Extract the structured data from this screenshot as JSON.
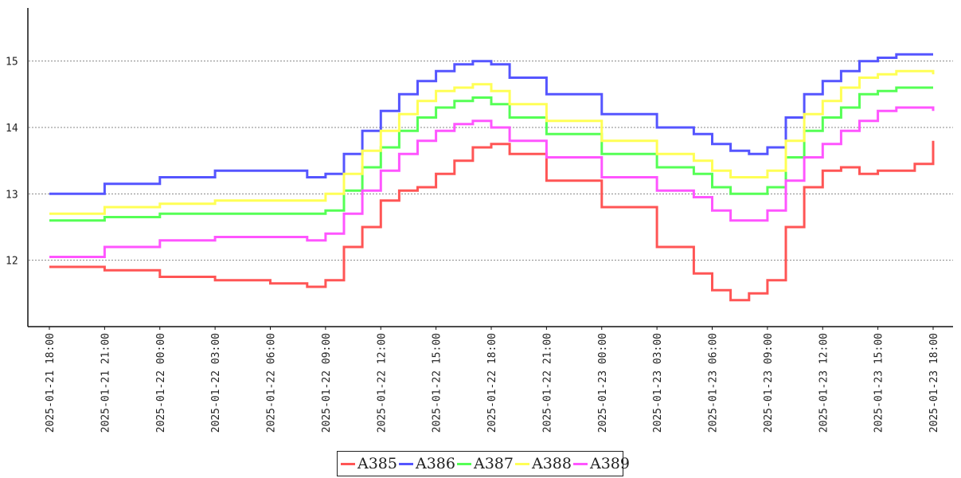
{
  "chart_data": {
    "type": "line",
    "title": "",
    "xlabel": "",
    "ylabel": "",
    "x_type": "datetime",
    "xlim": [
      "2025-01-21 18:00",
      "2025-01-23 18:00"
    ],
    "ylim": [
      11.0,
      15.8
    ],
    "grid": "horizontal dotted at y ticks",
    "legend_position": "bottom-center",
    "x_ticks": [
      "2025-01-21 18:00",
      "2025-01-21 21:00",
      "2025-01-22 00:00",
      "2025-01-22 03:00",
      "2025-01-22 06:00",
      "2025-01-22 09:00",
      "2025-01-22 12:00",
      "2025-01-22 15:00",
      "2025-01-22 18:00",
      "2025-01-22 21:00",
      "2025-01-23 00:00",
      "2025-01-23 03:00",
      "2025-01-23 06:00",
      "2025-01-23 09:00",
      "2025-01-23 12:00",
      "2025-01-23 15:00",
      "2025-01-23 18:00"
    ],
    "y_ticks": [
      12,
      13,
      14,
      15
    ],
    "x": [
      "2025-01-21 18:00",
      "2025-01-21 21:00",
      "2025-01-22 00:00",
      "2025-01-22 03:00",
      "2025-01-22 06:00",
      "2025-01-22 08:00",
      "2025-01-22 09:00",
      "2025-01-22 10:00",
      "2025-01-22 11:00",
      "2025-01-22 12:00",
      "2025-01-22 13:00",
      "2025-01-22 14:00",
      "2025-01-22 15:00",
      "2025-01-22 16:00",
      "2025-01-22 17:00",
      "2025-01-22 18:00",
      "2025-01-22 19:00",
      "2025-01-22 21:00",
      "2025-01-23 00:00",
      "2025-01-23 03:00",
      "2025-01-23 05:00",
      "2025-01-23 06:00",
      "2025-01-23 07:00",
      "2025-01-23 08:00",
      "2025-01-23 09:00",
      "2025-01-23 10:00",
      "2025-01-23 11:00",
      "2025-01-23 12:00",
      "2025-01-23 13:00",
      "2025-01-23 14:00",
      "2025-01-23 15:00",
      "2025-01-23 16:00",
      "2025-01-23 17:00",
      "2025-01-23 18:00"
    ],
    "series": [
      {
        "name": "A385",
        "color": "#ff5555",
        "values": [
          11.9,
          11.85,
          11.75,
          11.7,
          11.65,
          11.6,
          11.7,
          12.2,
          12.5,
          12.9,
          13.05,
          13.1,
          13.3,
          13.5,
          13.7,
          13.75,
          13.6,
          13.2,
          12.8,
          12.2,
          11.8,
          11.55,
          11.4,
          11.5,
          11.7,
          12.5,
          13.1,
          13.35,
          13.4,
          13.3,
          13.35,
          13.35,
          13.45,
          13.8
        ]
      },
      {
        "name": "A386",
        "color": "#5555ff",
        "values": [
          13.0,
          13.15,
          13.25,
          13.35,
          13.35,
          13.25,
          13.3,
          13.6,
          13.95,
          14.25,
          14.5,
          14.7,
          14.85,
          14.95,
          15.0,
          14.95,
          14.75,
          14.5,
          14.2,
          14.0,
          13.9,
          13.75,
          13.65,
          13.6,
          13.7,
          14.15,
          14.5,
          14.7,
          14.85,
          15.0,
          15.05,
          15.1,
          15.1,
          15.1
        ]
      },
      {
        "name": "A387",
        "color": "#55ff55",
        "values": [
          12.6,
          12.65,
          12.7,
          12.7,
          12.7,
          12.7,
          12.75,
          13.05,
          13.4,
          13.7,
          13.95,
          14.15,
          14.3,
          14.4,
          14.45,
          14.35,
          14.15,
          13.9,
          13.6,
          13.4,
          13.3,
          13.1,
          13.0,
          13.0,
          13.1,
          13.55,
          13.95,
          14.15,
          14.3,
          14.5,
          14.55,
          14.6,
          14.6,
          14.6
        ]
      },
      {
        "name": "A388",
        "color": "#ffff55",
        "values": [
          12.7,
          12.8,
          12.85,
          12.9,
          12.9,
          12.9,
          13.0,
          13.3,
          13.65,
          13.95,
          14.2,
          14.4,
          14.55,
          14.6,
          14.65,
          14.55,
          14.35,
          14.1,
          13.8,
          13.6,
          13.5,
          13.35,
          13.25,
          13.25,
          13.35,
          13.8,
          14.2,
          14.4,
          14.6,
          14.75,
          14.8,
          14.85,
          14.85,
          14.8
        ]
      },
      {
        "name": "A389",
        "color": "#ff55ff",
        "values": [
          12.05,
          12.2,
          12.3,
          12.35,
          12.35,
          12.3,
          12.4,
          12.7,
          13.05,
          13.35,
          13.6,
          13.8,
          13.95,
          14.05,
          14.1,
          14.0,
          13.8,
          13.55,
          13.25,
          13.05,
          12.95,
          12.75,
          12.6,
          12.6,
          12.75,
          13.2,
          13.55,
          13.75,
          13.95,
          14.1,
          14.25,
          14.3,
          14.3,
          14.25
        ]
      }
    ]
  }
}
